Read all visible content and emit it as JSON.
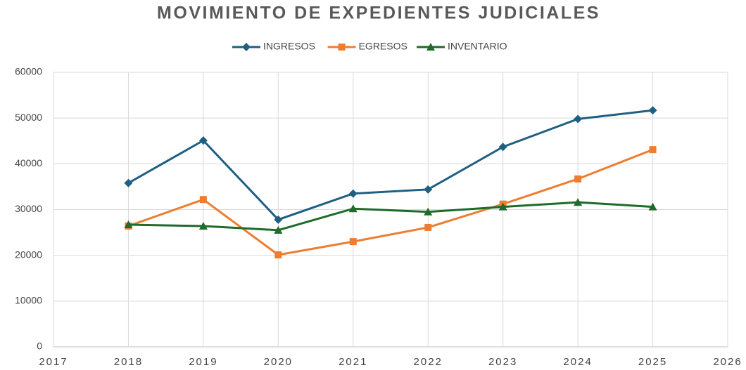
{
  "chart_data": {
    "type": "line",
    "title": "MOVIMIENTO DE EXPEDIENTES JUDICIALES",
    "x": [
      2018,
      2019,
      2020,
      2021,
      2022,
      2023,
      2024,
      2025
    ],
    "series": [
      {
        "name": "INGRESOS",
        "color": "#1f5f82",
        "marker": "diamond",
        "values": [
          35800,
          45100,
          27800,
          33500,
          34400,
          43700,
          49800,
          51700
        ]
      },
      {
        "name": "EGRESOS",
        "color": "#ed7d31",
        "marker": "square",
        "values": [
          26400,
          32200,
          20100,
          23000,
          26100,
          31200,
          36700,
          43100
        ]
      },
      {
        "name": "INVENTARIO",
        "color": "#1e6b2a",
        "marker": "triangle",
        "values": [
          26700,
          26400,
          25500,
          30200,
          29500,
          30600,
          31600,
          30600
        ]
      }
    ],
    "xlim": [
      2017,
      2026
    ],
    "xticks": [
      2017,
      2018,
      2019,
      2020,
      2021,
      2022,
      2023,
      2024,
      2025,
      2026
    ],
    "ylim": [
      0,
      60000
    ],
    "yticks": [
      0,
      10000,
      20000,
      30000,
      40000,
      50000,
      60000
    ],
    "grid": true,
    "legend": "top"
  }
}
